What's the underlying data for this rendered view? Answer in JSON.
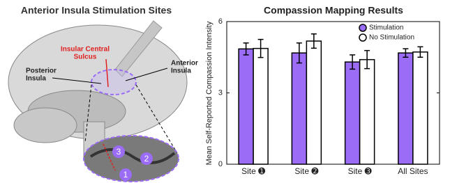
{
  "left_panel": {
    "title": "Anterior Insula Stimulation Sites",
    "sulcus_label": [
      "Insular Central",
      "Sulcus"
    ],
    "posterior_label": [
      "Posterior",
      "Insula"
    ],
    "anterior_label": [
      "Anterior",
      "Insula"
    ],
    "zoom_sites": [
      "3",
      "2",
      "1"
    ]
  },
  "chart_data": {
    "type": "bar",
    "title": "Compassion Mapping Results",
    "y_label": "Mean Self-Reported Compassion Intensity",
    "categories": [
      "Site ➊",
      "Site ➋",
      "Site ➌",
      "All Sites"
    ],
    "series": [
      {
        "name": "Stimulation",
        "color": "#9b6cf6",
        "values": [
          4.85,
          4.68,
          4.3,
          4.68
        ],
        "errors": [
          0.25,
          0.42,
          0.3,
          0.18
        ]
      },
      {
        "name": "No Stimulation",
        "color": "#ffffff",
        "values": [
          4.87,
          5.18,
          4.4,
          4.72
        ],
        "errors": [
          0.38,
          0.3,
          0.38,
          0.22
        ]
      }
    ],
    "ylim": [
      0,
      6
    ],
    "yticks": [
      0,
      3,
      6
    ],
    "legend": "upper right"
  }
}
